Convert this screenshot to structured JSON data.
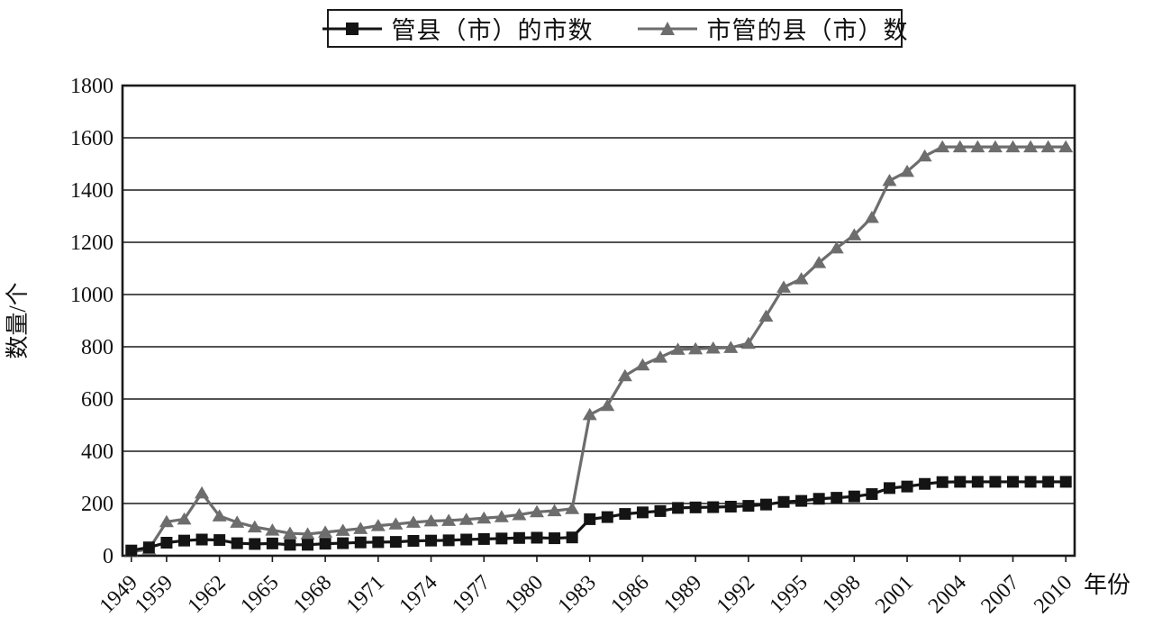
{
  "legend": {
    "items": [
      {
        "label": "管县（市）的市数",
        "marker": "square-marker-icon"
      },
      {
        "label": "市管的县（市）数",
        "marker": "triangle-marker-icon"
      }
    ]
  },
  "axes": {
    "y_label": "数量/个",
    "x_label": "年份",
    "y_ticks": [
      0,
      200,
      400,
      600,
      800,
      1000,
      1200,
      1400,
      1600,
      1800
    ],
    "x_tick_labels": [
      "1949",
      "1959",
      "1962",
      "1965",
      "1968",
      "1971",
      "1974",
      "1977",
      "1980",
      "1983",
      "1986",
      "1989",
      "1992",
      "1995",
      "1998",
      "2001",
      "2004",
      "2007",
      "2010"
    ]
  },
  "colors": {
    "series_cities": "#141414",
    "series_counties": "#6d6d6d",
    "axis": "#1a1a1a",
    "background": "#ffffff"
  },
  "chart_data": {
    "type": "line",
    "title": "",
    "xlabel": "年份",
    "ylabel": "数量/个",
    "ylim": [
      0,
      1800
    ],
    "y_tick_step": 200,
    "grid": "horizontal",
    "legend_position": "top-center",
    "x": [
      1949,
      1954,
      1959,
      1960,
      1961,
      1962,
      1963,
      1964,
      1965,
      1966,
      1967,
      1968,
      1969,
      1970,
      1971,
      1972,
      1973,
      1974,
      1975,
      1976,
      1977,
      1978,
      1979,
      1980,
      1981,
      1982,
      1983,
      1984,
      1985,
      1986,
      1987,
      1988,
      1989,
      1990,
      1991,
      1992,
      1993,
      1994,
      1995,
      1996,
      1997,
      1998,
      1999,
      2000,
      2001,
      2002,
      2003,
      2004,
      2005,
      2006,
      2007,
      2008,
      2009,
      2010
    ],
    "series": [
      {
        "name": "管县（市）的市数",
        "marker": "square",
        "color": "#141414",
        "values": [
          20,
          32,
          50,
          58,
          62,
          60,
          48,
          45,
          47,
          42,
          42,
          46,
          48,
          51,
          52,
          53,
          57,
          58,
          59,
          62,
          64,
          66,
          68,
          69,
          67,
          70,
          140,
          148,
          160,
          166,
          171,
          183,
          185,
          186,
          188,
          191,
          196,
          206,
          210,
          218,
          222,
          227,
          236,
          259,
          265,
          275,
          282,
          283,
          283,
          283,
          283,
          283,
          283,
          283
        ]
      },
      {
        "name": "市管的县（市）数",
        "marker": "triangle",
        "color": "#6d6d6d",
        "values": [
          15,
          25,
          130,
          140,
          240,
          152,
          128,
          110,
          98,
          86,
          83,
          90,
          97,
          104,
          115,
          121,
          128,
          133,
          135,
          139,
          144,
          149,
          157,
          168,
          172,
          180,
          540,
          575,
          689,
          730,
          760,
          790,
          792,
          795,
          797,
          813,
          917,
          1028,
          1060,
          1122,
          1178,
          1228,
          1295,
          1436,
          1471,
          1530,
          1565,
          1565,
          1565,
          1565,
          1565,
          1565,
          1565,
          1565
        ]
      }
    ]
  }
}
